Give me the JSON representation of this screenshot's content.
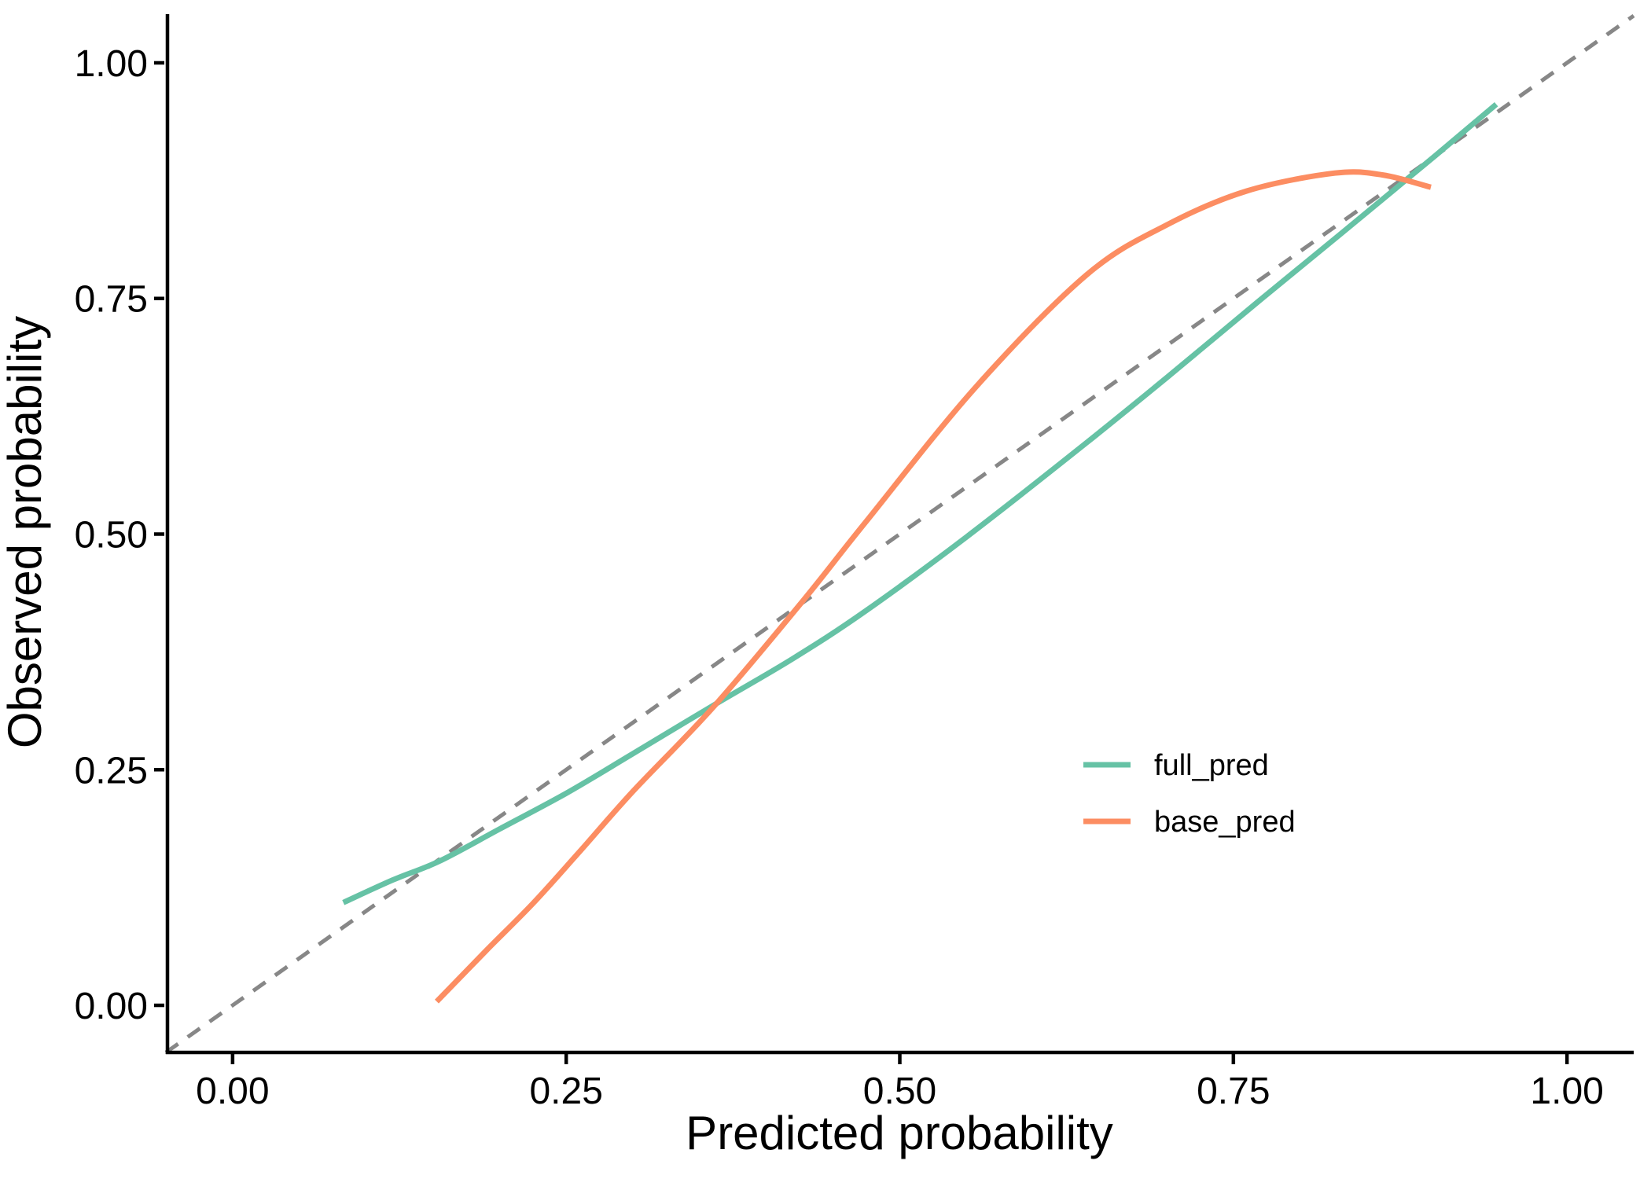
{
  "figure": {
    "background": "#ffffff",
    "axis_color": "#000000",
    "text_color": "#000000"
  },
  "chart_data": {
    "type": "line",
    "title": "",
    "xlabel": "Predicted probability",
    "ylabel": "Observed probability",
    "xlim": [
      -0.05,
      1.05
    ],
    "ylim": [
      -0.05,
      1.05
    ],
    "grid": false,
    "legend_position": "inside-right-middle",
    "x_ticks": [
      0,
      0.25,
      0.5,
      0.75,
      1
    ],
    "x_tick_labels": [
      "0.00",
      "0.25",
      "0.50",
      "0.75",
      "1.00"
    ],
    "y_ticks": [
      0,
      0.25,
      0.5,
      0.75,
      1
    ],
    "y_tick_labels": [
      "0.00",
      "0.25",
      "0.50",
      "0.75",
      "1.00"
    ],
    "reference_line": {
      "name": "identity",
      "intercept": 0,
      "slope": 1,
      "style": "dashed",
      "color": "#878787"
    },
    "series": [
      {
        "name": "full_pred",
        "color": "#66C2A5",
        "points": [
          [
            0.083,
            0.109
          ],
          [
            0.12,
            0.133
          ],
          [
            0.155,
            0.153
          ],
          [
            0.2,
            0.187
          ],
          [
            0.25,
            0.225
          ],
          [
            0.3,
            0.267
          ],
          [
            0.36,
            0.318
          ],
          [
            0.42,
            0.368
          ],
          [
            0.474,
            0.418
          ],
          [
            0.55,
            0.497
          ],
          [
            0.64,
            0.597
          ],
          [
            0.7,
            0.666
          ],
          [
            0.768,
            0.746
          ],
          [
            0.83,
            0.818
          ],
          [
            0.9,
            0.9
          ],
          [
            0.947,
            0.956
          ]
        ]
      },
      {
        "name": "base_pred",
        "color": "#FC8D62",
        "points": [
          [
            0.153,
            0.004
          ],
          [
            0.19,
            0.058
          ],
          [
            0.225,
            0.108
          ],
          [
            0.26,
            0.163
          ],
          [
            0.3,
            0.227
          ],
          [
            0.36,
            0.316
          ],
          [
            0.425,
            0.425
          ],
          [
            0.474,
            0.512
          ],
          [
            0.557,
            0.656
          ],
          [
            0.64,
            0.775
          ],
          [
            0.7,
            0.828
          ],
          [
            0.76,
            0.864
          ],
          [
            0.826,
            0.883
          ],
          [
            0.862,
            0.881
          ],
          [
            0.898,
            0.868
          ]
        ]
      }
    ]
  }
}
